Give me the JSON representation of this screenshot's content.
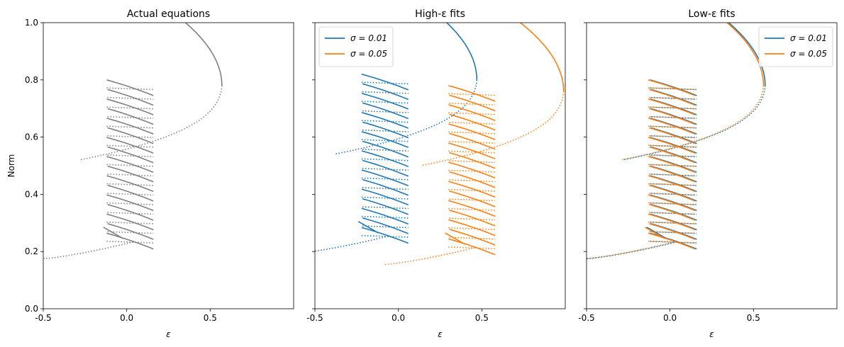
{
  "colors": {
    "blue": "#1f77b4",
    "orange": "#ff7f0e",
    "gray": "#808080",
    "axis": "#000000"
  },
  "shared": {
    "ylabel": "Norm",
    "xlabel": "ε",
    "xlim": [
      -0.5,
      1.0
    ],
    "ylim": [
      0.0,
      1.0
    ],
    "xticks": [
      "-0.5",
      "0.0",
      "0.5"
    ],
    "yticks": [
      "0.0",
      "0.2",
      "0.4",
      "0.6",
      "0.8",
      "1.0"
    ]
  },
  "chart_data": [
    {
      "type": "line",
      "title": "Actual equations",
      "xlabel": "ε",
      "ylabel": "Norm",
      "xlim": [
        -0.5,
        1.0
      ],
      "ylim": [
        0.0,
        1.0
      ],
      "legend": null,
      "series": [
        {
          "color": "#808080",
          "dx": 0.0,
          "offset": 0.0,
          "family": "baseline"
        }
      ]
    },
    {
      "type": "line",
      "title": "High-ε fits",
      "xlabel": "ε",
      "ylabel": "",
      "xlim": [
        -0.5,
        1.0
      ],
      "ylim": [
        0.0,
        1.0
      ],
      "legend": "top-left",
      "series": [
        {
          "name": "σ = 0.01",
          "color": "#1f77b4",
          "dx": -0.1,
          "offset": 0.02,
          "family": "blue"
        },
        {
          "name": "σ = 0.05",
          "color": "#ff7f0e",
          "dx": 0.42,
          "offset": -0.02,
          "family": "orange"
        }
      ]
    },
    {
      "type": "line",
      "title": "Low-ε fits",
      "xlabel": "ε",
      "ylabel": "",
      "xlim": [
        -0.5,
        1.0
      ],
      "ylim": [
        0.0,
        1.0
      ],
      "legend": "top-right",
      "series": [
        {
          "name": "σ = 0.01",
          "color": "#1f77b4",
          "dx": 0.0,
          "offset": 0.0,
          "family": "baseline"
        },
        {
          "name": "σ = 0.05",
          "color": "#ff7f0e",
          "dx": -0.01,
          "offset": 0.0,
          "family": "baseline"
        }
      ]
    }
  ]
}
